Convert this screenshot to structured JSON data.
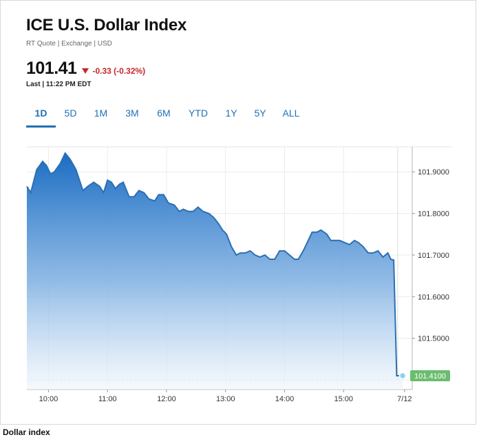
{
  "header": {
    "title": "ICE U.S. Dollar Index",
    "subtitle": "RT Quote | Exchange | USD",
    "price": "101.41",
    "change": "-0.33 (-0.32%)",
    "last_updated": "Last | 11:22 PM EDT"
  },
  "tabs": [
    {
      "label": "1D",
      "active": true
    },
    {
      "label": "5D",
      "active": false
    },
    {
      "label": "1M",
      "active": false
    },
    {
      "label": "3M",
      "active": false
    },
    {
      "label": "6M",
      "active": false
    },
    {
      "label": "YTD",
      "active": false
    },
    {
      "label": "1Y",
      "active": false
    },
    {
      "label": "5Y",
      "active": false
    },
    {
      "label": "ALL",
      "active": false
    }
  ],
  "colors": {
    "accent": "#1f6fb5",
    "negative": "#c8262b",
    "line": "#2c6fb3",
    "current_badge": "#6bbd6e"
  },
  "caption": "Dollar index",
  "chart_data": {
    "type": "area",
    "x_ticks": [
      "10:00",
      "11:00",
      "12:00",
      "13:00",
      "14:00",
      "15:00",
      "7/12"
    ],
    "y_ticks": [
      "101.5000",
      "101.6000",
      "101.7000",
      "101.8000",
      "101.9000"
    ],
    "ylim": [
      101.4,
      101.96
    ],
    "current_label": "101.4100",
    "grid": true,
    "series": [
      {
        "x": [
          "9:38",
          "9:42",
          "9:48",
          "9:54",
          "9:58",
          "10:02",
          "10:06",
          "10:12",
          "10:17",
          "10:22",
          "10:28",
          "10:35",
          "10:40",
          "10:46",
          "10:52",
          "10:56",
          "11:00",
          "11:04",
          "11:08",
          "11:12",
          "11:16",
          "11:22",
          "11:27",
          "11:32",
          "11:37",
          "11:42",
          "11:48",
          "11:52",
          "11:57",
          "12:02",
          "12:08",
          "12:13",
          "12:17",
          "12:22",
          "12:27",
          "12:32",
          "12:37",
          "12:43",
          "12:48",
          "12:53",
          "12:57",
          "13:01",
          "13:06",
          "13:11",
          "13:15",
          "13:20",
          "13:25",
          "13:30",
          "13:35",
          "13:40",
          "13:45",
          "13:50",
          "13:55",
          "14:00",
          "14:05",
          "14:10",
          "14:14",
          "14:19",
          "14:23",
          "14:28",
          "14:33",
          "14:37",
          "14:43",
          "14:47",
          "14:52",
          "14:56",
          "15:01",
          "15:06",
          "15:11",
          "15:15",
          "15:20",
          "15:25",
          "15:30",
          "15:35",
          "15:40",
          "15:45",
          "15:48",
          "15:51",
          "15:54",
          "16:00"
        ],
        "values": [
          101.865,
          101.85,
          101.905,
          101.925,
          101.915,
          101.895,
          101.9,
          101.92,
          101.945,
          101.93,
          101.905,
          101.855,
          101.865,
          101.875,
          101.865,
          101.85,
          101.88,
          101.875,
          101.86,
          101.87,
          101.875,
          101.84,
          101.84,
          101.855,
          101.85,
          101.835,
          101.83,
          101.845,
          101.845,
          101.825,
          101.82,
          101.805,
          101.81,
          101.805,
          101.805,
          101.815,
          101.805,
          101.8,
          101.79,
          101.775,
          101.76,
          101.75,
          101.72,
          101.7,
          101.705,
          101.705,
          101.71,
          101.7,
          101.695,
          101.7,
          101.69,
          101.69,
          101.71,
          101.71,
          101.7,
          101.69,
          101.69,
          101.71,
          101.73,
          101.755,
          101.755,
          101.76,
          101.75,
          101.735,
          101.735,
          101.735,
          101.73,
          101.725,
          101.735,
          101.73,
          101.72,
          101.705,
          101.705,
          101.71,
          101.695,
          101.705,
          101.69,
          101.688,
          101.41,
          101.41
        ]
      }
    ]
  }
}
